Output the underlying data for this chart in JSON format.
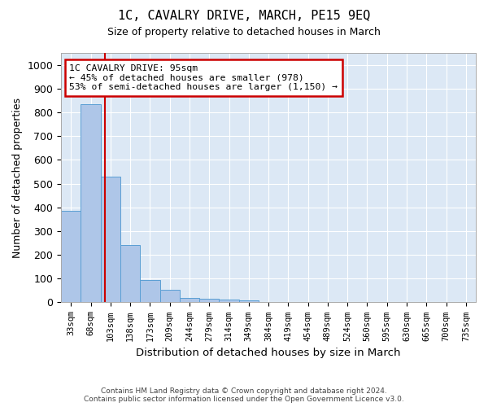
{
  "title": "1C, CAVALRY DRIVE, MARCH, PE15 9EQ",
  "subtitle": "Size of property relative to detached houses in March",
  "xlabel": "Distribution of detached houses by size in March",
  "ylabel": "Number of detached properties",
  "bin_labels": [
    "33sqm",
    "68sqm",
    "103sqm",
    "138sqm",
    "173sqm",
    "209sqm",
    "244sqm",
    "279sqm",
    "314sqm",
    "349sqm",
    "384sqm",
    "419sqm",
    "454sqm",
    "489sqm",
    "524sqm",
    "560sqm",
    "595sqm",
    "630sqm",
    "665sqm",
    "700sqm",
    "735sqm"
  ],
  "bar_values": [
    385,
    835,
    530,
    240,
    95,
    52,
    18,
    14,
    11,
    8,
    0,
    0,
    0,
    0,
    0,
    0,
    0,
    0,
    0,
    0,
    0
  ],
  "bar_color": "#aec6e8",
  "bar_edge_color": "#5a9fd4",
  "red_line_x": 1.72,
  "annotation_text": "1C CAVALRY DRIVE: 95sqm\n← 45% of detached houses are smaller (978)\n53% of semi-detached houses are larger (1,150) →",
  "annotation_box_color": "#ffffff",
  "annotation_box_edge_color": "#cc0000",
  "ylim": [
    0,
    1050
  ],
  "yticks": [
    0,
    100,
    200,
    300,
    400,
    500,
    600,
    700,
    800,
    900,
    1000
  ],
  "grid_color": "#d0d8e8",
  "background_color": "#dce8f5",
  "footer_line1": "Contains HM Land Registry data © Crown copyright and database right 2024.",
  "footer_line2": "Contains public sector information licensed under the Open Government Licence v3.0."
}
